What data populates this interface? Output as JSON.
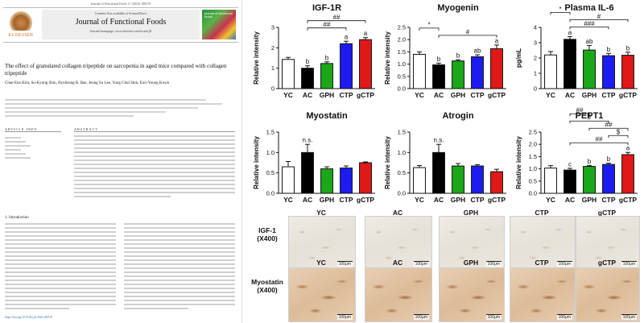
{
  "paper": {
    "top_line": "Journal of Functional Foods 11 (2024) 100519",
    "contents_line": "Contents lists available at ScienceDirect",
    "journal_name": "Journal of Functional Foods",
    "homepage_line": "Journal homepage: www.elsevier.com/locate/jff",
    "publisher": "ELSEVIER",
    "cover_text": "journal of functional foods",
    "title": "The effect of granulated collagen tripeptide on sarcopenia in aged mice compared with collagen tripeptide",
    "authors": "Chae-Eun Kim, So-Kyung Shin, Hyelisung R. Bae, Jeong Su Lee, Yong Chul Shin, Eun-Young Kwon",
    "article_info": "ARTICLE INFO",
    "abstract": "ABSTRACT",
    "intro_heading": "1. Introduction",
    "doi_line": "https://doi.org/10.1016/j.jff.2024.100519"
  },
  "colors": {
    "YC": "#ffffff",
    "AC": "#000000",
    "GPH": "#1aa81a",
    "CTP": "#1c1cf0",
    "gCTP": "#e01818",
    "edge": "#111111"
  },
  "chart_data": [
    {
      "id": "igf1r",
      "type": "bar",
      "title": "IGF-1R",
      "ylabel": "Relative intensity",
      "ylim": [
        0,
        3
      ],
      "yticks": [
        0,
        1,
        2,
        3
      ],
      "categories": [
        "YC",
        "AC",
        "GPH",
        "CTP",
        "gCTP"
      ],
      "values": [
        1.43,
        1.0,
        1.23,
        2.2,
        2.4
      ],
      "errors": [
        0.1,
        0.12,
        0.08,
        0.12,
        0.1
      ],
      "letters": [
        "",
        "b",
        "b",
        "a",
        "a"
      ],
      "brackets": [
        {
          "from": 1,
          "to": 4,
          "label": "##"
        },
        {
          "from": 1,
          "to": 3,
          "label": "##"
        }
      ]
    },
    {
      "id": "myogenin",
      "type": "bar",
      "title": "Myogenin",
      "ylabel": "Relative intensity",
      "ylim": [
        0,
        2.5
      ],
      "yticks": [
        0.0,
        0.5,
        1.0,
        1.5,
        2.0,
        2.5
      ],
      "categories": [
        "YC",
        "AC",
        "GPH",
        "CTP",
        "gCTP"
      ],
      "values": [
        1.4,
        0.97,
        1.13,
        1.3,
        1.63
      ],
      "errors": [
        0.1,
        0.07,
        0.05,
        0.08,
        0.15
      ],
      "letters": [
        "",
        "b",
        "b",
        "ab",
        "a"
      ],
      "brackets": [
        {
          "from": 0,
          "to": 1,
          "label": "*"
        },
        {
          "from": 1,
          "to": 4,
          "label": "#"
        }
      ]
    },
    {
      "id": "il6",
      "type": "bar",
      "title": "Plasma IL-6",
      "ylabel": "pg/mL",
      "ylim": [
        0,
        4
      ],
      "yticks": [
        0,
        1,
        2,
        3,
        4
      ],
      "categories": [
        "YC",
        "AC",
        "GPH",
        "CTP",
        "gCTP"
      ],
      "values": [
        2.2,
        3.22,
        2.52,
        2.15,
        2.18
      ],
      "errors": [
        0.22,
        0.18,
        0.3,
        0.15,
        0.2
      ],
      "letters": [
        "",
        "a",
        "ab",
        "b",
        "b"
      ],
      "brackets": [
        {
          "from": 0,
          "to": 1,
          "label": "*"
        },
        {
          "from": 1,
          "to": 4,
          "label": "#"
        },
        {
          "from": 1,
          "to": 3,
          "label": "###"
        }
      ]
    },
    {
      "id": "myostatin",
      "type": "bar",
      "title": "Myostatin",
      "ylabel": "Relative intensity",
      "ylim": [
        0,
        1.5
      ],
      "yticks": [
        0.0,
        0.5,
        1.0,
        1.5
      ],
      "categories": [
        "YC",
        "AC",
        "GPH",
        "CTP",
        "gCTP"
      ],
      "values": [
        0.65,
        1.0,
        0.6,
        0.62,
        0.75
      ],
      "errors": [
        0.13,
        0.2,
        0.05,
        0.05,
        0.02
      ],
      "letters": [
        "",
        "n.s.",
        "",
        "",
        ""
      ],
      "brackets": []
    },
    {
      "id": "atrogin",
      "type": "bar",
      "title": "Atrogin",
      "ylabel": "Relative intensity",
      "ylim": [
        0,
        1.5
      ],
      "yticks": [
        0.0,
        0.5,
        1.0,
        1.5
      ],
      "categories": [
        "YC",
        "AC",
        "GPH",
        "CTP",
        "gCTP"
      ],
      "values": [
        0.63,
        1.0,
        0.67,
        0.67,
        0.53
      ],
      "errors": [
        0.05,
        0.2,
        0.06,
        0.03,
        0.06
      ],
      "letters": [
        "",
        "n.s.",
        "",
        "",
        ""
      ],
      "brackets": []
    },
    {
      "id": "pept1",
      "type": "bar",
      "title": "PEPT1",
      "ylabel": "Relative intensity",
      "ylim": [
        0,
        2.5
      ],
      "yticks": [
        0.0,
        0.5,
        1.0,
        1.5,
        2.0,
        2.5
      ],
      "categories": [
        "YC",
        "AC",
        "GPH",
        "CTP",
        "gCTP"
      ],
      "values": [
        1.03,
        0.95,
        1.1,
        1.18,
        1.58
      ],
      "errors": [
        0.1,
        0.07,
        0.04,
        0.05,
        0.09
      ],
      "letters": [
        "",
        "c",
        "b",
        "b",
        "a"
      ],
      "brackets": [
        {
          "from": 1,
          "to": 2,
          "label": "##"
        },
        {
          "from": 1,
          "to": 3,
          "label": "#"
        },
        {
          "from": 2,
          "to": 4,
          "label": "##"
        },
        {
          "from": 3,
          "to": 4,
          "label": "$"
        },
        {
          "from": 1,
          "to": 4,
          "label": "##"
        }
      ]
    }
  ],
  "micrographs": {
    "groups": [
      "YC",
      "AC",
      "GPH",
      "CTP",
      "gCTP"
    ],
    "rows": [
      {
        "label_line1": "IGF-1",
        "label_line2": "(X400)",
        "scale": "100μm"
      },
      {
        "label_line1": "Myostatin",
        "label_line2": "(X400)",
        "scale": "100μm"
      }
    ]
  }
}
